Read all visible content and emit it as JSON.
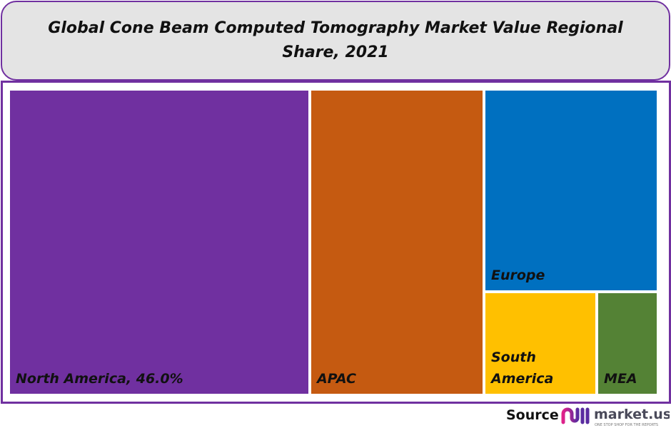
{
  "chart_data": {
    "type": "treemap",
    "title": "Global Cone Beam Computed Tomography Market Value Regional Share, 2021",
    "categories": [
      "North America",
      "APAC",
      "Europe",
      "South America",
      "MEA"
    ],
    "values": [
      46.0,
      26.6,
      17.8,
      5.7,
      3.1
    ],
    "labels": [
      "North America, 46.0%",
      "APAC",
      "Europe",
      "South America",
      "MEA"
    ],
    "colors": [
      "#7030a0",
      "#c55a11",
      "#0070c0",
      "#ffc000",
      "#548235"
    ],
    "unit": "%"
  },
  "footer": {
    "source_label": "Source",
    "logo_text": "market.us",
    "logo_tagline": "ONE STOP SHOP FOR THE REPORTS"
  },
  "colors": {
    "frame": "#7030a0",
    "title_bg": "#e4e4e4"
  }
}
